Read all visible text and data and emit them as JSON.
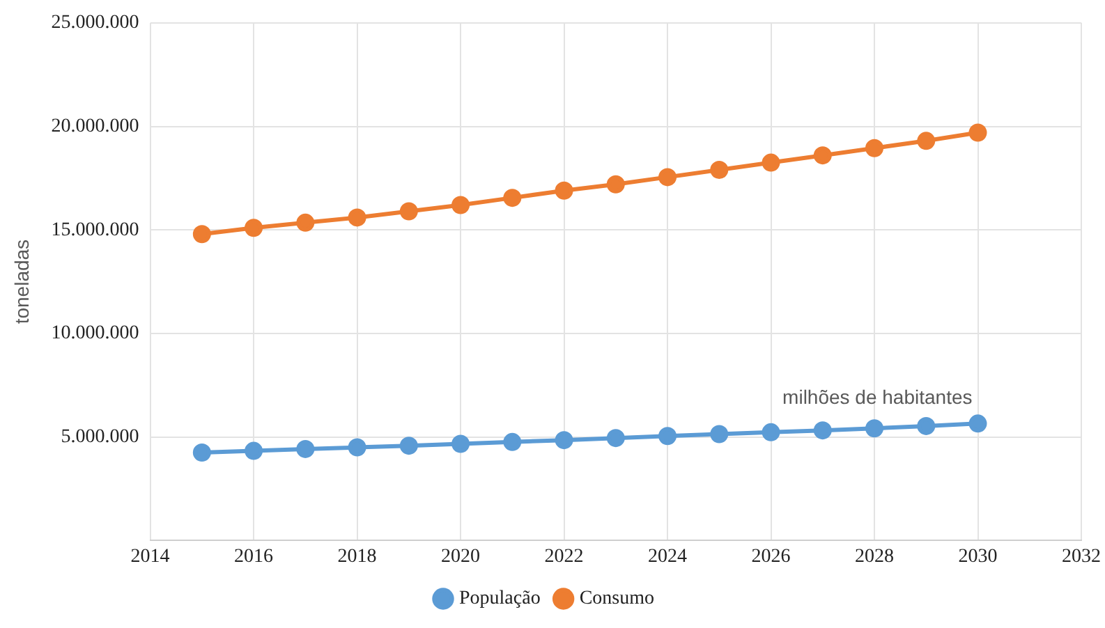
{
  "chart_data": {
    "type": "line",
    "ylabel": "toneladas",
    "x": [
      2015,
      2016,
      2017,
      2018,
      2019,
      2020,
      2021,
      2022,
      2023,
      2024,
      2025,
      2026,
      2027,
      2028,
      2029,
      2030
    ],
    "series": [
      {
        "name": "População",
        "color": "#5b9bd5",
        "values": [
          4250000,
          4330000,
          4420000,
          4500000,
          4580000,
          4670000,
          4760000,
          4850000,
          4950000,
          5050000,
          5140000,
          5230000,
          5320000,
          5420000,
          5530000,
          5650000
        ]
      },
      {
        "name": "Consumo",
        "color": "#ed7d31",
        "values": [
          14800000,
          15100000,
          15350000,
          15600000,
          15900000,
          16200000,
          16550000,
          16900000,
          17200000,
          17550000,
          17900000,
          18250000,
          18600000,
          18950000,
          19300000,
          19700000
        ]
      }
    ],
    "xlim": [
      2014,
      2032
    ],
    "xticks": [
      2014,
      2016,
      2018,
      2020,
      2022,
      2024,
      2026,
      2028,
      2030,
      2032
    ],
    "ylim": [
      0,
      25000000
    ],
    "yticks": [
      {
        "value": 0,
        "label": null
      },
      {
        "value": 5000000,
        "label": "5.000.000"
      },
      {
        "value": 10000000,
        "label": "10.000.000"
      },
      {
        "value": 15000000,
        "label": "15.000.000"
      },
      {
        "value": 20000000,
        "label": "20.000.000"
      },
      {
        "value": 25000000,
        "label": "25.000.000"
      }
    ],
    "annotations": [
      "milhões de habitantes"
    ],
    "grid": true,
    "legend": "bottom",
    "marker": "circle",
    "line_style": "solid"
  }
}
